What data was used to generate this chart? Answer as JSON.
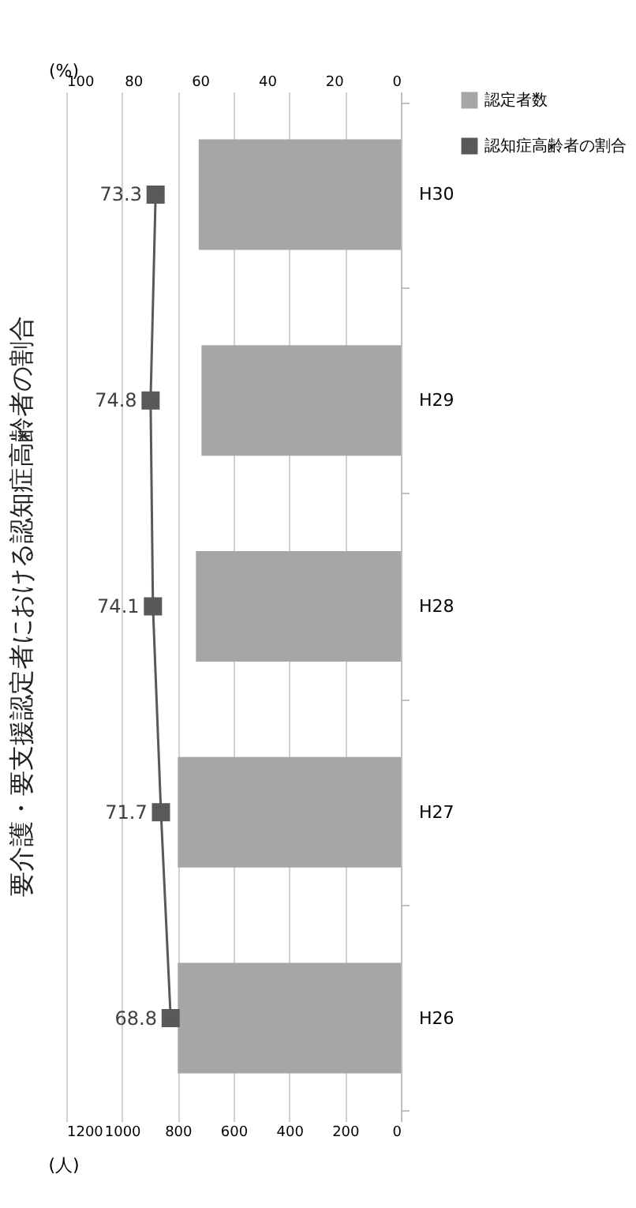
{
  "chart_data": {
    "type": "bar",
    "orientation": "horizontal",
    "title": "要介護・要支援認定者における認知症高齢者の割合",
    "xlabel": "(人)",
    "x2label": "(%)",
    "categories": [
      "H30",
      "H29",
      "H28",
      "H27",
      "H26"
    ],
    "series": [
      {
        "name": "認定者数",
        "color": "#a6a6a6",
        "values": [
          725,
          715,
          735,
          800,
          800
        ]
      },
      {
        "name": "認知症高齢者の割合",
        "type": "line",
        "axis": "x2",
        "color": "#595959",
        "marker": "square",
        "data_labels": true,
        "values": [
          73.3,
          74.8,
          74.1,
          71.7,
          68.8
        ]
      }
    ],
    "xlim": [
      1200,
      0
    ],
    "xticks": [
      1200,
      1000,
      800,
      600,
      400,
      200,
      0
    ],
    "x2lim": [
      100,
      0
    ],
    "x2ticks": [
      100,
      80,
      60,
      40,
      20,
      0
    ],
    "grid": "x",
    "legend": "right"
  }
}
